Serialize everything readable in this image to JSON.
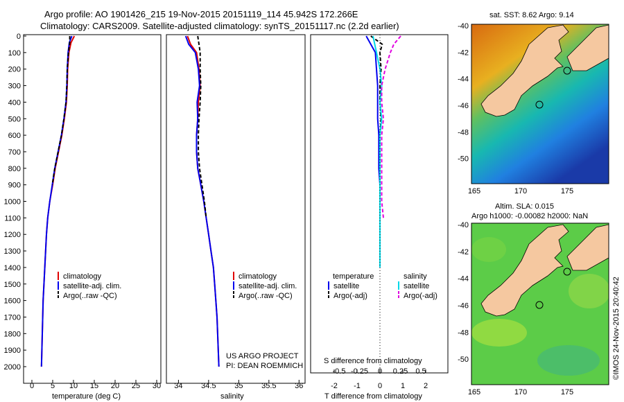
{
  "header": {
    "line1": "Argo profile: AO 1901426_215 19-Nov-2015 20151119_114 45.942S 172.266E",
    "line2": "Climatology: CARS2009. Satellite-adjusted climatology: synTS_20151117.nc (2.2d earlier)"
  },
  "credit": {
    "project": "US ARGO PROJECT",
    "pi": "PI: DEAN ROEMMICH",
    "imos": "©IMOS 24-Nov-2015 20:40:42"
  },
  "colors": {
    "climatology": "#e00000",
    "satellite": "#0000ee",
    "argo": "#000000",
    "sat_salinity": "#00d8e8",
    "argo_salinity": "#e000e0",
    "land": "#f5c8a0"
  },
  "depth_ticks": [
    "0",
    "100",
    "200",
    "300",
    "400",
    "500",
    "600",
    "700",
    "800",
    "900",
    "1000",
    "1100",
    "1200",
    "1300",
    "1400",
    "1500",
    "1600",
    "1700",
    "1800",
    "1900",
    "2000"
  ],
  "panels": {
    "temperature": {
      "xlabel": "temperature (deg C)",
      "xticks": [
        "0",
        "5",
        "10",
        "15",
        "20",
        "25",
        "30"
      ],
      "legend": [
        "climatology",
        "satellite-adj. clim.",
        "Argo(..raw -QC)"
      ]
    },
    "salinity": {
      "xlabel": "salinity",
      "xticks": [
        "34",
        "34.5",
        "35",
        "35.5",
        "36"
      ],
      "legend": [
        "climatology",
        "satellite-adj. clim.",
        "Argo(..raw -QC)"
      ]
    },
    "difference": {
      "xlabel": "T difference from climatology",
      "xlabel_top": "S difference from climatology",
      "xticks_T": [
        "-2",
        "-1",
        "0",
        "1",
        "2"
      ],
      "xticks_S": [
        "-0.5",
        "-0.25",
        "0",
        "0.25",
        "0.5"
      ],
      "legend_head_T": "temperature",
      "legend_head_S": "salinity",
      "legend_T": [
        "satellite",
        "Argo(-adj)"
      ],
      "legend_S": [
        "satellite",
        "Argo(-adj)"
      ]
    }
  },
  "maps": {
    "sst": {
      "title": "sat. SST: 8.62 Argo: 9.14",
      "yticks": [
        "-40",
        "-42",
        "-44",
        "-46",
        "-48",
        "-50"
      ],
      "xticks": [
        "165",
        "170",
        "175"
      ]
    },
    "sla": {
      "title1": "Altim. SLA: 0.015",
      "title2": "Argo h1000: -0.00082 h2000: NaN",
      "yticks": [
        "-40",
        "-42",
        "-44",
        "-46",
        "-48",
        "-50"
      ],
      "xticks": [
        "165",
        "170",
        "175"
      ]
    }
  },
  "chart_data": [
    {
      "type": "line",
      "title": "",
      "xlabel": "temperature (deg C)",
      "ylabel": "",
      "xlim": [
        -2,
        31
      ],
      "ylim": [
        2050,
        0
      ],
      "series": [
        {
          "name": "climatology",
          "x": [
            10.2,
            9.4,
            8.9,
            8.6,
            8.5,
            8.3,
            7.8,
            7.2,
            6.4,
            5.6,
            5.0,
            4.3,
            3.8,
            3.5,
            3.3,
            3.1,
            2.9,
            2.7,
            2.6,
            2.5,
            2.4,
            2.3
          ],
          "y": [
            0,
            40,
            100,
            200,
            300,
            400,
            500,
            600,
            700,
            800,
            900,
            1000,
            1100,
            1200,
            1300,
            1400,
            1500,
            1600,
            1700,
            1800,
            1900,
            2000
          ]
        },
        {
          "name": "satellite-adj. clim.",
          "x": [
            9.6,
            9.0,
            8.7,
            8.5,
            8.4,
            8.2,
            7.7,
            7.1,
            6.3,
            5.5,
            4.9,
            4.3,
            3.8,
            3.5,
            3.3,
            3.1,
            2.9,
            2.7,
            2.6,
            2.5,
            2.4,
            2.3
          ],
          "y": [
            0,
            40,
            100,
            200,
            300,
            400,
            500,
            600,
            700,
            800,
            900,
            1000,
            1100,
            1200,
            1300,
            1400,
            1500,
            1600,
            1700,
            1800,
            1900,
            2000
          ]
        },
        {
          "name": "Argo(..raw -QC)",
          "x": [
            9.1,
            9.1,
            8.8,
            8.5,
            8.4,
            8.2,
            7.7,
            7.1,
            6.3,
            5.5,
            4.9
          ],
          "y": [
            0,
            40,
            100,
            200,
            300,
            400,
            500,
            600,
            700,
            800,
            900
          ]
        }
      ]
    },
    {
      "type": "line",
      "title": "",
      "xlabel": "salinity",
      "ylabel": "",
      "xlim": [
        33.8,
        36.1
      ],
      "ylim": [
        2050,
        0
      ],
      "series": [
        {
          "name": "climatology",
          "x": [
            34.15,
            34.2,
            34.3,
            34.34,
            34.36,
            34.33,
            34.32,
            34.3,
            34.3,
            34.32,
            34.37,
            34.42,
            34.46,
            34.5,
            34.54,
            34.58,
            34.6,
            34.62,
            34.64,
            34.65,
            34.66,
            34.67
          ],
          "y": [
            0,
            50,
            100,
            200,
            300,
            400,
            500,
            600,
            700,
            800,
            900,
            1000,
            1100,
            1200,
            1300,
            1400,
            1500,
            1600,
            1700,
            1800,
            1900,
            2000
          ]
        },
        {
          "name": "satellite-adj. clim.",
          "x": [
            34.12,
            34.17,
            34.28,
            34.33,
            34.35,
            34.31,
            34.32,
            34.3,
            34.3,
            34.32,
            34.37,
            34.42,
            34.46,
            34.5,
            34.54,
            34.58,
            34.6,
            34.62,
            34.64,
            34.65,
            34.66,
            34.67
          ],
          "y": [
            0,
            50,
            100,
            200,
            300,
            400,
            500,
            600,
            700,
            800,
            900,
            1000,
            1100,
            1200,
            1300,
            1400,
            1500,
            1600,
            1700,
            1800,
            1900,
            2000
          ]
        },
        {
          "name": "Argo(..raw -QC)",
          "x": [
            34.32,
            34.34,
            34.36,
            34.36,
            34.37,
            34.36,
            34.34,
            34.33,
            34.33,
            34.35,
            34.39,
            34.43,
            34.46
          ],
          "y": [
            0,
            50,
            100,
            200,
            300,
            400,
            500,
            600,
            700,
            800,
            900,
            1000,
            1100
          ]
        }
      ]
    },
    {
      "type": "line",
      "title": "",
      "xlabel": "T difference from climatology",
      "ylabel": "",
      "xlim": [
        -2.5,
        2.5
      ],
      "ylim": [
        2050,
        0
      ],
      "series": [
        {
          "name": "temperature satellite",
          "x": [
            -0.6,
            -0.4,
            -0.2,
            -0.15,
            -0.1,
            -0.1,
            -0.1,
            -0.05,
            -0.05,
            -0.05,
            0.0,
            0.0,
            0.0,
            0.0,
            0.0,
            0.0
          ],
          "y": [
            0,
            50,
            100,
            200,
            300,
            400,
            500,
            600,
            700,
            800,
            900,
            1000,
            1100,
            1200,
            1300,
            1400
          ]
        },
        {
          "name": "temperature Argo(-adj)",
          "x": [
            -0.4,
            0.1,
            0.0,
            0.05,
            0.0,
            0.0,
            0.05,
            0.0,
            0.0,
            0.0,
            0.0
          ],
          "y": [
            0,
            50,
            100,
            200,
            300,
            400,
            500,
            600,
            700,
            800,
            900
          ]
        },
        {
          "name": "salinity satellite",
          "x": [
            -0.2,
            -0.15,
            -0.1,
            0.0,
            0.05,
            0.0,
            0.05,
            0.0,
            0.0,
            0.0,
            0.0,
            0.0,
            0.0,
            0.0,
            0.0,
            0.0
          ],
          "y": [
            0,
            50,
            100,
            200,
            300,
            400,
            500,
            600,
            700,
            800,
            900,
            1000,
            1100,
            1200,
            1300,
            1400
          ]
        },
        {
          "name": "salinity Argo(-adj)",
          "x": [
            0.6,
            0.4,
            0.3,
            0.15,
            0.05,
            0.05,
            0.1,
            0.05,
            0.05,
            0.05,
            0.05,
            0.05,
            0.1
          ],
          "y": [
            0,
            50,
            100,
            200,
            300,
            400,
            500,
            600,
            700,
            800,
            900,
            1000,
            1100
          ]
        }
      ]
    }
  ]
}
